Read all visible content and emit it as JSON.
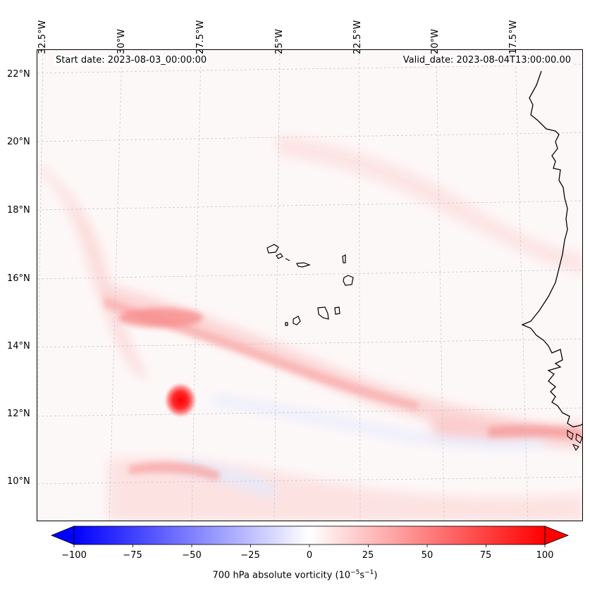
{
  "header": {
    "start_date": "Start date: 2023-08-03_00:00:00",
    "valid_date": "Valid_date: 2023-08-04T13:00:00.00"
  },
  "lon_labels": [
    "32.5°W",
    "30°W",
    "27.5°W",
    "25°W",
    "22.5°W",
    "20°W",
    "17.5°W"
  ],
  "lat_labels": [
    "22°N",
    "20°N",
    "18°N",
    "16°N",
    "14°N",
    "12°N",
    "10°N"
  ],
  "colorbar": {
    "label": "700 hPa absolute vorticity (10",
    "label_exp1": "−5",
    "label_mid": "s",
    "label_exp2": "−1",
    "label_end": ")",
    "min": -100,
    "max": 100,
    "ticks": [
      "−100",
      "−75",
      "−50",
      "−25",
      "0",
      "25",
      "50",
      "75",
      "100"
    ],
    "low_color": "#0000ff",
    "mid_color": "#ffffff",
    "high_color": "#ff0000"
  },
  "map": {
    "background": "#fdf8f8",
    "coast_color": "#000000",
    "grid_color": "#c8c8c8"
  }
}
